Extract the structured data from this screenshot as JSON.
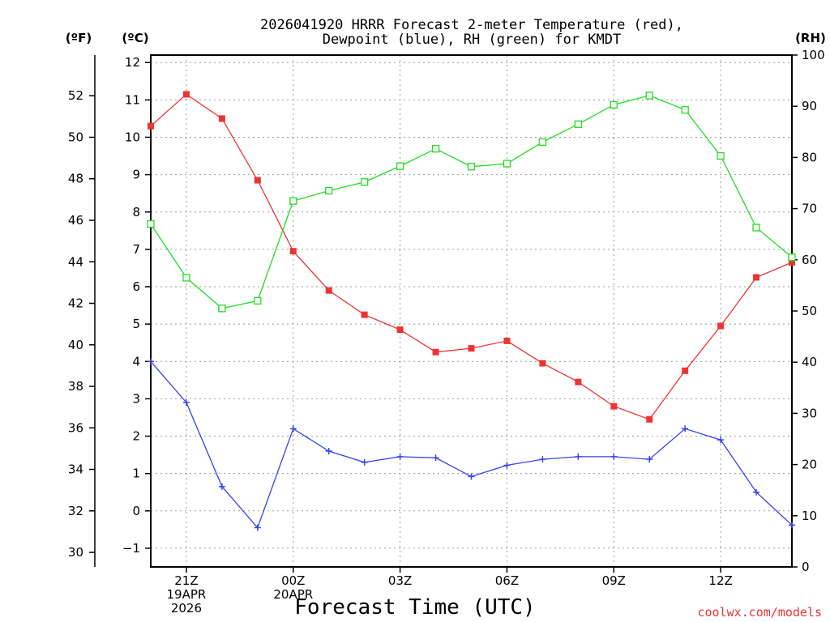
{
  "chart_data": {
    "type": "line",
    "title_lines": [
      "2026041920 HRRR Forecast 2-meter Temperature (red),",
      "Dewpoint (blue), RH (green) for KMDT"
    ],
    "xlabel": "Forecast Time (UTC)",
    "credit": "coolwx.com/models",
    "units": {
      "fahrenheit": "(ºF)",
      "celsius": "(ºC)",
      "rh": "(RH)"
    },
    "x_hours": [
      0,
      1,
      2,
      3,
      4,
      5,
      6,
      7,
      8,
      9,
      10,
      11,
      12,
      13,
      14,
      15,
      16,
      17,
      18
    ],
    "xlim": [
      0,
      18
    ],
    "x_ticks": [
      {
        "x": 1,
        "lines": [
          "21Z",
          "19APR",
          "2026"
        ]
      },
      {
        "x": 4,
        "lines": [
          "00Z",
          "20APR"
        ]
      },
      {
        "x": 7,
        "lines": [
          "03Z"
        ]
      },
      {
        "x": 10,
        "lines": [
          "06Z"
        ]
      },
      {
        "x": 13,
        "lines": [
          "09Z"
        ]
      },
      {
        "x": 16,
        "lines": [
          "12Z"
        ]
      }
    ],
    "celsius_axis": {
      "min": -1.5,
      "max": 12.2,
      "ticks": [
        -1,
        0,
        1,
        2,
        3,
        4,
        5,
        6,
        7,
        8,
        9,
        10,
        11,
        12
      ],
      "labels": [
        "−1",
        "0",
        "1",
        "2",
        "3",
        "4",
        "5",
        "6",
        "7",
        "8",
        "9",
        "10",
        "11",
        "12"
      ]
    },
    "fahrenheit_axis": {
      "ticks": [
        30,
        32,
        34,
        36,
        38,
        40,
        42,
        44,
        46,
        48,
        50,
        52
      ],
      "labels": [
        "30",
        "32",
        "34",
        "36",
        "38",
        "40",
        "42",
        "44",
        "46",
        "48",
        "50",
        "52"
      ]
    },
    "rh_axis": {
      "min": 0,
      "max": 100,
      "ticks": [
        0,
        10,
        20,
        30,
        40,
        50,
        60,
        70,
        80,
        90,
        100
      ],
      "labels": [
        "0",
        "10",
        "20",
        "30",
        "40",
        "50",
        "60",
        "70",
        "80",
        "90",
        "100"
      ]
    },
    "series": [
      {
        "name": "Temperature",
        "axis": "celsius",
        "color": "#ee3333",
        "marker": "filled-square",
        "values": [
          10.3,
          11.15,
          10.5,
          8.85,
          6.95,
          5.9,
          5.25,
          4.85,
          4.25,
          4.35,
          4.55,
          3.95,
          3.45,
          2.8,
          2.45,
          3.75,
          4.95,
          6.25,
          6.65
        ]
      },
      {
        "name": "Dewpoint",
        "axis": "celsius",
        "color": "#3344ee",
        "marker": "plus",
        "values": [
          4.0,
          2.9,
          0.65,
          -0.45,
          2.2,
          1.6,
          1.3,
          1.45,
          1.42,
          0.92,
          1.22,
          1.38,
          1.45,
          1.45,
          1.38,
          2.2,
          1.9,
          0.5,
          -0.38
        ]
      },
      {
        "name": "RH",
        "axis": "rh",
        "color": "#22dd22",
        "marker": "open-square",
        "values": [
          67,
          56.5,
          50.5,
          52,
          71.5,
          73.5,
          75.2,
          78.3,
          81.7,
          78.2,
          78.8,
          83,
          86.5,
          90.3,
          92.1,
          89.3,
          80.3,
          66.3,
          60.5
        ]
      }
    ]
  }
}
